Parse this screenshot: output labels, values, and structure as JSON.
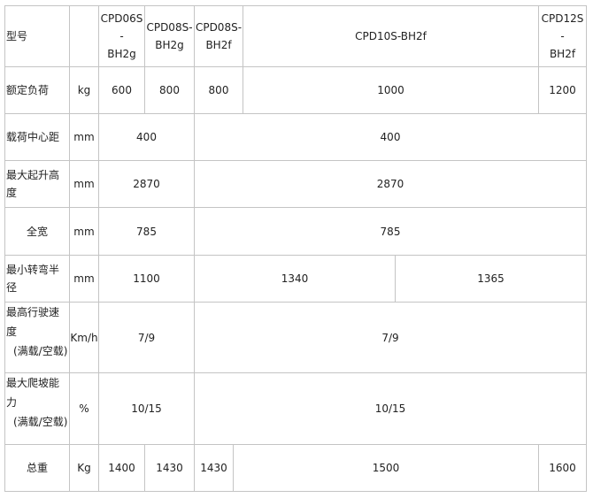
{
  "table": {
    "rows": [
      {
        "label": "型号",
        "unit": "",
        "cells": [
          "CPD06S-BH2g",
          "CPD08S-BH2g",
          "CPD08S-BH2f",
          "CPD10S-BH2f",
          "CPD12S-BH2f"
        ]
      },
      {
        "label": "额定负荷",
        "unit": "kg",
        "cells": [
          "600",
          "800",
          "800",
          "1000",
          "1200"
        ]
      },
      {
        "label": "载荷中心距",
        "unit": "mm",
        "cells": [
          "400",
          "400"
        ]
      },
      {
        "label": "最大起升高度",
        "unit": "mm",
        "cells": [
          "2870",
          "2870"
        ]
      },
      {
        "label": "全宽",
        "unit": "mm",
        "cells": [
          "785",
          "785"
        ]
      },
      {
        "label": "最小转弯半径",
        "unit": "mm",
        "cells": [
          "1100",
          "1340",
          "1365"
        ]
      },
      {
        "label": "最高行驶速度",
        "label2": "(满载/空载)",
        "unit": "Km/h",
        "cells": [
          "7/9",
          "7/9"
        ]
      },
      {
        "label": "最大爬坡能力",
        "label2": "(满载/空载)",
        "unit": "%",
        "cells": [
          "10/15",
          "10/15"
        ]
      },
      {
        "label": "总重",
        "unit": "Kg",
        "cells": [
          "1400",
          "1430",
          "1430",
          "1500",
          "1600"
        ]
      }
    ]
  }
}
